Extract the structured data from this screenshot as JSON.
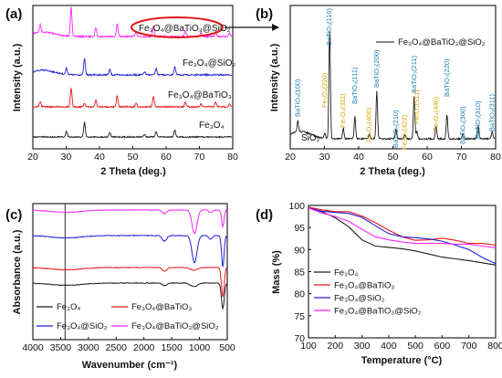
{
  "colors": {
    "black": "#1a1a1a",
    "red": "#e8141a",
    "blue": "#2020d8",
    "magenta": "#ff22ff",
    "annot_blue": "#1a7fb0",
    "annot_yellow": "#d7a400",
    "highlight": "#e3191c"
  },
  "chart_data": [
    {
      "id": "a",
      "panel_label": "(a)",
      "type": "line",
      "title": "",
      "xlabel": "2 Theta (deg.)",
      "ylabel": "Intensity (a.u.)",
      "xlim": [
        20,
        80
      ],
      "xticks": [
        20,
        30,
        40,
        50,
        60,
        70,
        80
      ],
      "y_ticks_shown": false,
      "series": [
        {
          "name": "Fe₃O₄@BaTiO₃@SiO₂",
          "color_key": "magenta",
          "highlighted": true
        },
        {
          "name": "Fe₃O₄@SiO₂",
          "color_key": "blue"
        },
        {
          "name": "Fe₃O₄@BaTiO₃",
          "color_key": "red"
        },
        {
          "name": "Fe₃O₄",
          "color_key": "black"
        }
      ]
    },
    {
      "id": "b",
      "panel_label": "(b)",
      "type": "line",
      "title": "",
      "xlabel": "2 Theta (deg.)",
      "ylabel": "Intensity (a.u.)",
      "xlim": [
        20,
        80
      ],
      "xticks": [
        20,
        30,
        40,
        50,
        60,
        70,
        80
      ],
      "y_ticks_shown": false,
      "legend": {
        "entries": [
          "Fe₃O₄@BaTiO₃@SiO₂"
        ],
        "placement": "top-right"
      },
      "series": [
        {
          "name": "Fe₃O₄@BaTiO₃@SiO₂",
          "color_key": "black"
        }
      ],
      "annotations": [
        {
          "text": "BaTiO₃(100)",
          "x": 22.2,
          "color_key": "annot_blue"
        },
        {
          "text": "Fe₃O₄(220)",
          "x": 30.1,
          "color_key": "annot_yellow"
        },
        {
          "text": "BaTiO₃(110)",
          "x": 31.5,
          "color_key": "annot_blue"
        },
        {
          "text": "Fe₃O₄(311)",
          "x": 35.5,
          "color_key": "annot_yellow"
        },
        {
          "text": "BaTiO₃(111)",
          "x": 38.9,
          "color_key": "annot_blue"
        },
        {
          "text": "Fe₃O₄(400)",
          "x": 43.1,
          "color_key": "annot_yellow"
        },
        {
          "text": "BaTiO₃(200)",
          "x": 45.3,
          "color_key": "annot_blue"
        },
        {
          "text": "BaTiO₃(210)",
          "x": 50.9,
          "color_key": "annot_blue"
        },
        {
          "text": "Fe₃O₄(422)",
          "x": 53.5,
          "color_key": "annot_yellow"
        },
        {
          "text": "BaTiO₃(211)",
          "x": 56.2,
          "color_key": "annot_blue"
        },
        {
          "text": "Fe₃O₄(511)",
          "x": 57.0,
          "color_key": "annot_yellow"
        },
        {
          "text": "Fe₃O₄(440)",
          "x": 62.6,
          "color_key": "annot_yellow"
        },
        {
          "text": "BaTiO₃(220)",
          "x": 65.8,
          "color_key": "annot_blue"
        },
        {
          "text": "BaTiO₃(300)",
          "x": 70.5,
          "color_key": "annot_blue"
        },
        {
          "text": "BaTiO₃(310)",
          "x": 74.9,
          "color_key": "annot_blue"
        },
        {
          "text": "BaTiO₃(311)",
          "x": 79.0,
          "color_key": "annot_blue"
        }
      ],
      "side_label": "SiO₂"
    },
    {
      "id": "c",
      "panel_label": "(c)",
      "type": "line",
      "title": "",
      "xlabel": "Wavenumber (cm⁻¹)",
      "ylabel": "Absorbance (a.u.)",
      "xlim": [
        4000,
        500
      ],
      "xticks": [
        4000,
        3500,
        3000,
        2500,
        2000,
        1500,
        1000,
        500
      ],
      "y_ticks_shown": false,
      "reference_line_x": 3420,
      "legend": {
        "placement": "bottom",
        "entries": [
          {
            "name": "Fe₃O₄",
            "color_key": "black"
          },
          {
            "name": "Fe₃O₄@BaTiO₃",
            "color_key": "red"
          },
          {
            "name": "Fe₃O₄@SiO₂",
            "color_key": "blue"
          },
          {
            "name": "Fe₃O₄@BaTiO₃@SiO₂",
            "color_key": "magenta"
          }
        ]
      }
    },
    {
      "id": "d",
      "panel_label": "(d)",
      "type": "line",
      "title": "",
      "xlabel": "Temperature (°C)",
      "ylabel": "Mass (%)",
      "xlim": [
        100,
        800
      ],
      "ylim": [
        70,
        100
      ],
      "xticks": [
        100,
        200,
        300,
        400,
        500,
        600,
        700,
        800
      ],
      "yticks": [
        70,
        75,
        80,
        85,
        90,
        95,
        100
      ],
      "legend": {
        "placement": "lower-left"
      },
      "series": [
        {
          "name": "Fe₃O₄",
          "color_key": "black",
          "x": [
            100,
            150,
            200,
            250,
            300,
            350,
            400,
            450,
            500,
            550,
            600,
            650,
            700,
            750,
            800
          ],
          "y": [
            99.5,
            98.6,
            97.2,
            95.2,
            92.2,
            90.8,
            90.5,
            90.2,
            89.7,
            89.0,
            88.3,
            87.9,
            87.5,
            87.0,
            86.5
          ]
        },
        {
          "name": "Fe₃O₄@BaTiO₃",
          "color_key": "red",
          "x": [
            100,
            150,
            200,
            250,
            300,
            350,
            400,
            450,
            500,
            550,
            600,
            650,
            700,
            750,
            800
          ],
          "y": [
            99.6,
            99.0,
            98.6,
            98.6,
            97.6,
            96.1,
            94.4,
            92.9,
            92.1,
            92.2,
            92.6,
            92.1,
            91.4,
            91.4,
            91.0
          ]
        },
        {
          "name": "Fe₃O₄@SiO₂",
          "color_key": "blue",
          "x": [
            100,
            150,
            200,
            250,
            300,
            350,
            400,
            450,
            500,
            550,
            600,
            650,
            700,
            750,
            800
          ],
          "y": [
            99.4,
            98.7,
            98.4,
            98.2,
            97.3,
            95.4,
            93.6,
            92.9,
            92.7,
            92.4,
            91.9,
            91.0,
            90.0,
            88.2,
            86.8
          ]
        },
        {
          "name": "Fe₃O₄@BaTiO₃@SiO₂",
          "color_key": "magenta",
          "x": [
            100,
            150,
            200,
            250,
            300,
            350,
            400,
            450,
            500,
            550,
            600,
            650,
            700,
            750,
            800
          ],
          "y": [
            99.4,
            98.3,
            97.5,
            96.4,
            94.6,
            92.9,
            92.2,
            91.7,
            91.4,
            91.4,
            91.4,
            91.2,
            91.2,
            90.8,
            90.4
          ]
        }
      ]
    }
  ]
}
